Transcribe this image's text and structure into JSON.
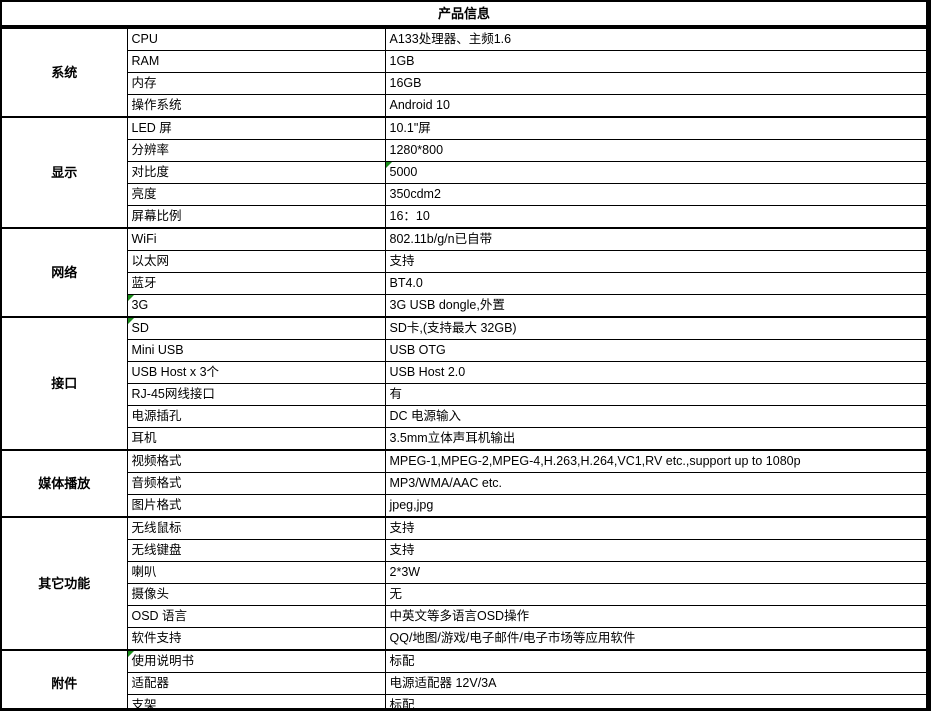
{
  "header": {
    "title": "产品信息"
  },
  "colors": {
    "border": "#000000",
    "background": "#ffffff",
    "text": "#000000",
    "error_indicator_green": "#1b8c1b"
  },
  "table": {
    "sections": [
      {
        "category": "系统",
        "rows": [
          {
            "label": "CPU",
            "value": "A133处理器、主频1.6"
          },
          {
            "label": "RAM",
            "value": "1GB"
          },
          {
            "label": "内存",
            "value": "16GB"
          },
          {
            "label": "操作系统",
            "value": "Android 10"
          }
        ]
      },
      {
        "category": "显示",
        "rows": [
          {
            "label": "LED 屏",
            "value": "10.1\"屏"
          },
          {
            "label": "分辨率",
            "value": "1280*800"
          },
          {
            "label": "对比度",
            "value": "5000",
            "value_flag": true
          },
          {
            "label": "亮度",
            "value": "350cdm2"
          },
          {
            "label": "屏幕比例",
            "value": "16：10"
          }
        ]
      },
      {
        "category": "网络",
        "rows": [
          {
            "label": "WiFi",
            "value": "802.11b/g/n已自带"
          },
          {
            "label": "以太网",
            "value": "支持"
          },
          {
            "label": "蓝牙",
            "value": "BT4.0"
          },
          {
            "label": "3G",
            "value": "3G USB dongle,外置",
            "label_flag": true
          }
        ]
      },
      {
        "category": "接口",
        "rows": [
          {
            "label": "SD",
            "value": "SD卡,(支持最大 32GB)",
            "label_flag": true
          },
          {
            "label": "Mini USB",
            "value": "USB OTG"
          },
          {
            "label": "USB Host x 3个",
            "value": "USB Host 2.0"
          },
          {
            "label": "RJ-45网线接口",
            "value": "有"
          },
          {
            "label": "电源插孔",
            "value": "DC 电源输入"
          },
          {
            "label": "耳机",
            "value": "3.5mm立体声耳机输出"
          }
        ]
      },
      {
        "category": "媒体播放",
        "rows": [
          {
            "label": "视频格式",
            "value": "MPEG-1,MPEG-2,MPEG-4,H.263,H.264,VC1,RV etc.,support up to 1080p"
          },
          {
            "label": "音频格式",
            "value": "MP3/WMA/AAC etc."
          },
          {
            "label": "图片格式",
            "value": "jpeg,jpg"
          }
        ]
      },
      {
        "category": "其它功能",
        "rows": [
          {
            "label": "无线鼠标",
            "value": "支持"
          },
          {
            "label": "无线键盘",
            "value": "支持"
          },
          {
            "label": "喇叭",
            "value": "2*3W"
          },
          {
            "label": "摄像头",
            "value": "无"
          },
          {
            "label": "OSD 语言",
            "value": "中英文等多语言OSD操作"
          },
          {
            "label": "软件支持",
            "value": "QQ/地图/游戏/电子邮件/电子市场等应用软件"
          }
        ]
      },
      {
        "category": "附件",
        "rows": [
          {
            "label": "使用说明书",
            "value": "标配",
            "label_flag": true
          },
          {
            "label": "适配器",
            "value": "电源适配器 12V/3A"
          },
          {
            "label": "支架",
            "value": "标配"
          }
        ]
      }
    ]
  }
}
